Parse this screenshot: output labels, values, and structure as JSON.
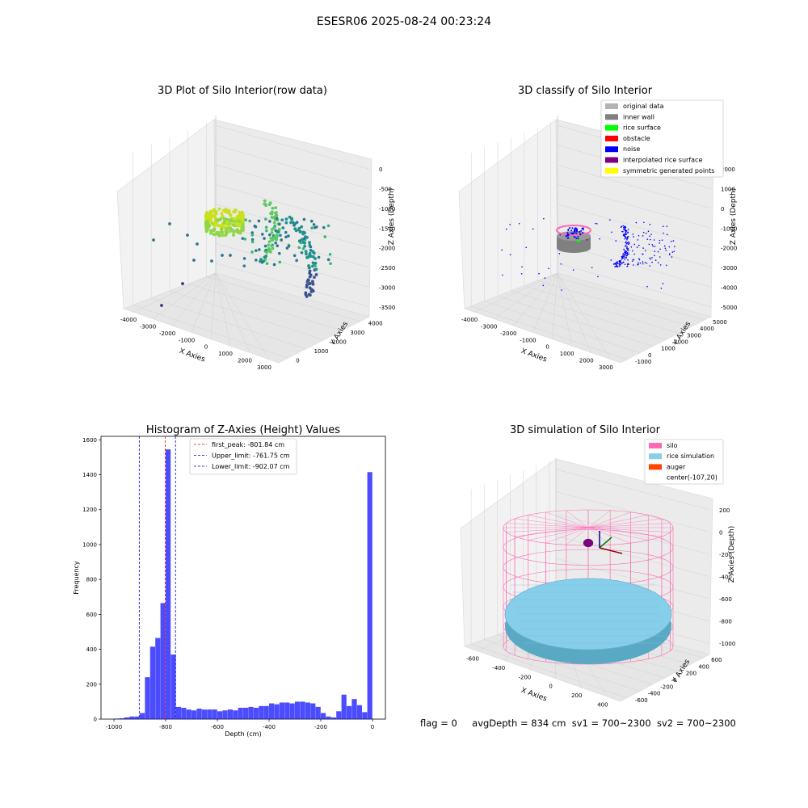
{
  "page": {
    "suptitle": "ESESR06 2025-08-24 00:23:24"
  },
  "footer": {
    "flag": "flag = 0",
    "avg": "avgDepth = 834 cm",
    "sv1": "sv1 = 700~2300",
    "sv2": "sv2 = 700~2300"
  },
  "chart_data": [
    {
      "type": "scatter",
      "title": "3D Plot of Silo Interior(row data)",
      "xlabel": "X Axies",
      "ylabel": "Y Axies",
      "zlabel": "Z Axies (Depth)",
      "x_ticks": [
        "-4000",
        "-3000",
        "-2000",
        "-1000",
        "0",
        "1000",
        "2000",
        "3000"
      ],
      "y_ticks": [
        "0",
        "1000",
        "2000",
        "3000",
        "4000"
      ],
      "z_ticks": [
        "0",
        "-500",
        "-1000",
        "-1500",
        "-2000",
        "-2500",
        "-3000",
        "-3500"
      ]
    },
    {
      "type": "scatter",
      "title": "3D classify of Silo Interior",
      "xlabel": "X Axies",
      "ylabel": "Y Axies",
      "zlabel": "Z Axies (Depth)",
      "x_ticks": [
        "-4000",
        "-3000",
        "-2000",
        "-1000",
        "0",
        "1000",
        "2000",
        "3000"
      ],
      "y_ticks": [
        "-1000",
        "0",
        "1000",
        "2000",
        "3000",
        "4000",
        "5000"
      ],
      "z_ticks": [
        "2000",
        "1000",
        "0",
        "-1000",
        "-2000",
        "-3000",
        "-4000",
        "-5000"
      ],
      "legend": [
        {
          "label": "original data",
          "color": "#b3b3b3"
        },
        {
          "label": "inner wall",
          "color": "#808080"
        },
        {
          "label": "rice surface",
          "color": "#00ff00"
        },
        {
          "label": "obstacle",
          "color": "#ff0000"
        },
        {
          "label": "noise",
          "color": "#0000ff"
        },
        {
          "label": "interpolated rice surface",
          "color": "#800080"
        },
        {
          "label": "symmetric generated points",
          "color": "#ffff00"
        }
      ]
    },
    {
      "type": "bar",
      "title": "Histogram of Z-Axies (Height) Values",
      "xlabel": "Depth (cm)",
      "ylabel": "Frequency",
      "xlim": [
        -1050,
        50
      ],
      "ylim": [
        0,
        1620
      ],
      "x_ticks": [
        -1000,
        -800,
        -600,
        -400,
        -200,
        0
      ],
      "y_ticks": [
        0,
        200,
        400,
        600,
        800,
        1000,
        1200,
        1400,
        1600
      ],
      "bin_width": 20,
      "bin_starts": [
        -1000,
        -980,
        -960,
        -940,
        -920,
        -900,
        -880,
        -860,
        -840,
        -820,
        -800,
        -780,
        -760,
        -740,
        -720,
        -700,
        -680,
        -660,
        -640,
        -620,
        -600,
        -580,
        -560,
        -540,
        -520,
        -500,
        -480,
        -460,
        -440,
        -420,
        -400,
        -380,
        -360,
        -340,
        -320,
        -300,
        -280,
        -260,
        -240,
        -220,
        -200,
        -180,
        -160,
        -140,
        -120,
        -100,
        -80,
        -60,
        -40,
        -20
      ],
      "values": [
        3,
        5,
        10,
        15,
        15,
        35,
        240,
        415,
        465,
        665,
        1545,
        370,
        70,
        65,
        55,
        50,
        60,
        55,
        55,
        55,
        45,
        50,
        55,
        50,
        65,
        65,
        70,
        65,
        75,
        75,
        90,
        85,
        95,
        95,
        90,
        100,
        100,
        95,
        90,
        70,
        35,
        15,
        10,
        45,
        140,
        75,
        115,
        80,
        40,
        1415
      ],
      "bar_color": "#0000ff",
      "lines": [
        {
          "label": "first_peak: -801.84 cm",
          "x": -801.84,
          "color": "#ff0000"
        },
        {
          "label": "Upper_limit: -761.75 cm",
          "x": -761.75,
          "color": "#0000cc"
        },
        {
          "label": "Lower_limit: -902.07 cm",
          "x": -902.07,
          "color": "#0000cc"
        }
      ]
    },
    {
      "type": "scatter",
      "title": "3D simulation of Silo Interior",
      "xlabel": "X Axies",
      "ylabel": "Y Axies",
      "zlabel": "Z Axies (Depth)",
      "x_ticks": [
        "-600",
        "-400",
        "-200",
        "0",
        "200",
        "400"
      ],
      "y_ticks": [
        "-600",
        "-400",
        "-200",
        "0",
        "200",
        "400",
        "600"
      ],
      "z_ticks": [
        "200",
        "0",
        "-200",
        "-400",
        "-600",
        "-800",
        "-1000"
      ],
      "legend": [
        {
          "label": "silo",
          "color": "#ff69b4"
        },
        {
          "label": "rice simulation",
          "color": "#87ceeb"
        },
        {
          "label": "auger",
          "color": "#ff4500"
        },
        {
          "label": "center(-107,20)",
          "color": ""
        }
      ]
    }
  ]
}
